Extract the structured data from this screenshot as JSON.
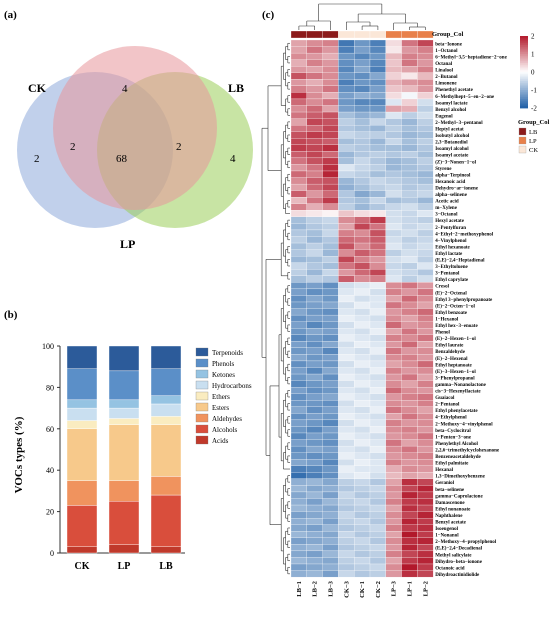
{
  "panel_labels": {
    "a": "(a)",
    "b": "(b)",
    "c": "(c)"
  },
  "colors": {
    "venn": {
      "CK": "#8eaadb",
      "LB": "#9acd5a",
      "LP": "#e8959a"
    },
    "stack": [
      "#c0392b",
      "#d94e3c",
      "#f0935e",
      "#f7c98b",
      "#faecc0",
      "#c9dff0",
      "#95c3e2",
      "#5b8fc8",
      "#2c5b9a"
    ],
    "heat": {
      "low": "#1f5fa6",
      "mid": "#ffffff",
      "high": "#b2182b"
    },
    "group": {
      "LB": "#8b1a1a",
      "LP": "#e8804a",
      "CK": "#fbe7d8"
    }
  },
  "chart_data": [
    {
      "type": "venn",
      "sets": [
        "CK",
        "LB",
        "LP"
      ],
      "regions": {
        "CK_only": "2",
        "LB_only": "4",
        "LP_only": "4",
        "CK_LP": "2",
        "LB_LP": "2",
        "CK_LB_LP": "68"
      }
    },
    {
      "type": "bar",
      "stacked": true,
      "categories": [
        "CK",
        "LP",
        "LB"
      ],
      "ylabel": "VOCs types (%)",
      "ylim": [
        0,
        100
      ],
      "yticks": [
        "0",
        "20",
        "40",
        "60",
        "80",
        "100"
      ],
      "legend_position": "right",
      "series": [
        {
          "name": "Acids",
          "values": [
            3,
            4,
            3
          ]
        },
        {
          "name": "Alcohols",
          "values": [
            20,
            21,
            25
          ]
        },
        {
          "name": "Aldehydes",
          "values": [
            12,
            10,
            9
          ]
        },
        {
          "name": "Esters",
          "values": [
            25,
            27,
            25
          ]
        },
        {
          "name": "Ethers",
          "values": [
            4,
            3,
            4
          ]
        },
        {
          "name": "Hydrocarbons",
          "values": [
            6,
            5,
            6
          ]
        },
        {
          "name": "Ketones",
          "values": [
            4,
            4,
            4
          ]
        },
        {
          "name": "Phenols",
          "values": [
            15,
            14,
            13
          ]
        },
        {
          "name": "Terpenoids",
          "values": [
            11,
            12,
            11
          ]
        }
      ]
    },
    {
      "type": "heatmap",
      "columns": [
        "LB−1",
        "LB−2",
        "LB−3",
        "CK−3",
        "CK−1",
        "CK−2",
        "LP−3",
        "LP−1",
        "LP−2"
      ],
      "column_groups": [
        "LB",
        "LB",
        "LB",
        "CK",
        "CK",
        "CK",
        "LP",
        "LP",
        "LP"
      ],
      "group_row_label": "Group_Col",
      "legend_title": "Group_Col",
      "legend_items": [
        "LB",
        "LP",
        "CK"
      ],
      "colorbar_ticks": [
        "2",
        "1",
        "0",
        "-1",
        "-2"
      ],
      "range": [
        -2,
        2
      ],
      "rows": [
        "beta−Ionone",
        "1−Octanol",
        "6−Methyl−3,5−heptadiene−2−one",
        "Octanal",
        "Linalool",
        "2−Butanol",
        "Limonene",
        "Phenethyl acetate",
        "6−Methylhept−5−en−2−one",
        "Isoamyl lactate",
        "Benzyl alcohol",
        "Eugenol",
        "2−Methyl−3−pentanol",
        "Heptyl acetat",
        "Isobutyl alcohol",
        "2,3−Butanediol",
        "Isoamyl alcohol",
        "Isoamyl acetate",
        "(Z)−3−Nonen−1−ol",
        "Styrene",
        "alpha−Terpineol",
        "Hexanoic acid",
        "Dehydro−ar−ionene",
        "alpha−selinene",
        "Acetic acid",
        "m−Xylene",
        "3−Octanol",
        "Hexyl acetate",
        "2−Pentylfuran",
        "4−Ethyl−2−methoxyphenol",
        "4−Vinylphenol",
        "Ethyl hexanoate",
        "Ethyl lactate",
        "(E,E)−2,4−Heptadienal",
        "3−Ethyltoluene",
        "3−Pentanol",
        "Ethyl caprylate",
        "Cresol",
        "(E)−2−Octenal",
        "Ethyl 3−phenylpropanoate",
        "(E)−2−Octen−1−ol",
        "Ethyl benzoate",
        "1−Hexanol",
        "Ethyl hex−3−enoate",
        "Phenol",
        "(E)−2−Hexen−1−ol",
        "Ethyl laurate",
        "Benzaldehyde",
        "(E)−2−Hexenal",
        "Ethyl heptanoate",
        "(E)−3−Hexen−1−ol",
        "3−Phenylpropanol",
        "gamma−Nonanolactone",
        "cis−3−Hexenyllactate",
        "Guaiacol",
        "2−Pentanol",
        "Ethyl phenylacetate",
        "4−Ethylphenol",
        "2−Methoxy−4−vinylphenol",
        "beta−Cyclocitral",
        "1−Penten−3−one",
        "Phenylethyl Alcohol",
        "2,2,6−trimethylcyclohexanone",
        "Benzeneacetaldehyde",
        "Ethyl palmitate",
        "Hexanal",
        "1,3−Dimethoxybenzene",
        "Geraniol",
        "beta−selinene",
        "gamma−Caprolactone",
        "Damascenone",
        "Ethyl nonanoate",
        "Naphthalene",
        "Benzyl acetate",
        "Isoeugenol",
        "1−Nonanol",
        "2−Methoxy−4−propylphenol",
        "(E,E)−2,4−Decadienal",
        "Methyl salicylate",
        "Dihydro−beta−ionone",
        "Octanoic acid",
        "Dihydroactinidiolide"
      ],
      "values": [
        [
          0.8,
          1.0,
          1.1,
          -1.7,
          -1.3,
          -1.6,
          0.3,
          1.2,
          1.6
        ],
        [
          0.8,
          1.2,
          0.9,
          -1.6,
          -1.2,
          -1.5,
          0.2,
          0.9,
          1.1
        ],
        [
          1.0,
          0.9,
          0.7,
          -1.3,
          -1.5,
          -1.3,
          0.6,
          1.1,
          1.0
        ],
        [
          0.7,
          1.1,
          0.9,
          -1.4,
          -1.2,
          -1.5,
          0.5,
          1.2,
          0.9
        ],
        [
          0.9,
          0.8,
          1.0,
          -1.5,
          -1.1,
          -1.6,
          0.6,
          0.8,
          1.1
        ],
        [
          1.5,
          1.2,
          1.0,
          -1.3,
          -1.4,
          -1.1,
          0.4,
          0.2,
          0.6
        ],
        [
          0.9,
          0.7,
          1.0,
          -1.6,
          -1.3,
          -1.4,
          0.7,
          0.9,
          1.0
        ],
        [
          1.1,
          0.9,
          1.2,
          -1.4,
          -1.5,
          -1.2,
          0.5,
          0.6,
          0.9
        ],
        [
          1.8,
          1.0,
          0.7,
          -1.2,
          -1.0,
          -1.1,
          0.3,
          -0.1,
          0.4
        ],
        [
          1.3,
          1.0,
          1.2,
          -1.3,
          -1.5,
          -1.5,
          -0.3,
          0.4,
          -0.4
        ],
        [
          1.0,
          1.3,
          0.8,
          -1.2,
          -1.3,
          -1.3,
          0.8,
          0.7,
          -0.6
        ],
        [
          1.2,
          1.4,
          1.5,
          -0.8,
          -1.0,
          -0.9,
          -0.3,
          -0.6,
          -0.4
        ],
        [
          0.8,
          1.6,
          1.5,
          -0.6,
          -0.8,
          -0.5,
          -0.7,
          -0.9,
          -0.6
        ],
        [
          1.2,
          1.3,
          1.6,
          -0.7,
          -0.8,
          -0.9,
          -0.6,
          -0.8,
          -0.7
        ],
        [
          1.5,
          1.7,
          1.6,
          -0.5,
          -0.6,
          -0.6,
          -0.7,
          -0.9,
          -0.8
        ],
        [
          1.6,
          1.5,
          1.4,
          -0.8,
          -0.7,
          -0.9,
          -0.5,
          -0.8,
          -0.6
        ],
        [
          1.7,
          1.6,
          1.8,
          -0.6,
          -0.7,
          -0.8,
          -0.8,
          -0.9,
          -0.7
        ],
        [
          1.4,
          1.6,
          1.3,
          -0.9,
          -0.7,
          -0.6,
          -0.7,
          -0.6,
          -0.8
        ],
        [
          1.2,
          1.5,
          1.7,
          -0.8,
          -0.5,
          -0.7,
          -0.9,
          -0.8,
          -0.6
        ],
        [
          0.9,
          1.2,
          1.8,
          -0.3,
          -0.5,
          -0.6,
          -0.9,
          -0.8,
          -0.7
        ],
        [
          1.3,
          1.1,
          1.9,
          -0.5,
          -0.6,
          -0.8,
          -0.7,
          -0.8,
          -0.9
        ],
        [
          1.0,
          1.4,
          1.5,
          -0.9,
          -0.7,
          -0.5,
          -0.6,
          -0.7,
          -0.8
        ],
        [
          0.8,
          1.3,
          1.6,
          -1.0,
          -0.8,
          -0.6,
          -0.5,
          -0.7,
          -0.6
        ],
        [
          1.4,
          0.9,
          1.3,
          -0.7,
          -1.1,
          -0.9,
          -0.4,
          -0.6,
          -0.5
        ],
        [
          0.6,
          1.2,
          1.7,
          -0.7,
          -0.8,
          -0.5,
          -0.8,
          -0.7,
          -0.9
        ],
        [
          1.1,
          0.7,
          1.0,
          -0.6,
          -0.9,
          -0.7,
          -0.5,
          -0.4,
          -0.6
        ],
        [
          0.3,
          0.2,
          0.1,
          0.5,
          0.3,
          0.2,
          -0.4,
          -0.5,
          -0.3
        ],
        [
          -0.8,
          -0.6,
          -0.5,
          1.0,
          1.3,
          1.7,
          -0.4,
          -0.5,
          -0.6
        ],
        [
          -0.9,
          -0.7,
          -0.6,
          0.8,
          1.6,
          1.2,
          -0.3,
          -0.5,
          -0.4
        ],
        [
          -0.7,
          -0.8,
          -0.5,
          1.1,
          1.0,
          1.5,
          -0.5,
          -0.4,
          -0.6
        ],
        [
          -0.6,
          -0.9,
          -0.7,
          1.3,
          1.2,
          1.4,
          -0.4,
          -0.6,
          -0.5
        ],
        [
          -0.8,
          -0.6,
          -0.8,
          1.5,
          1.0,
          1.3,
          -0.3,
          -0.5,
          -0.4
        ],
        [
          -0.7,
          -0.5,
          -0.9,
          1.0,
          1.4,
          1.2,
          -0.6,
          -0.4,
          -0.5
        ],
        [
          -0.9,
          -0.8,
          -0.6,
          1.6,
          1.1,
          0.9,
          -0.4,
          -0.3,
          -0.6
        ],
        [
          -0.5,
          -0.7,
          -0.8,
          1.2,
          1.5,
          1.0,
          -0.5,
          -0.6,
          -0.3
        ],
        [
          -0.6,
          -0.9,
          -0.5,
          0.9,
          1.3,
          1.6,
          -0.4,
          -0.5,
          -0.7
        ],
        [
          -0.8,
          -0.6,
          -0.7,
          1.4,
          1.0,
          1.1,
          -0.3,
          -0.6,
          -0.4
        ],
        [
          -1.3,
          -1.2,
          -1.4,
          -0.4,
          -0.3,
          -0.2,
          1.0,
          1.2,
          0.9
        ],
        [
          -1.2,
          -1.4,
          -1.3,
          -0.3,
          -0.2,
          -0.4,
          1.1,
          0.9,
          1.2
        ],
        [
          -1.4,
          -1.1,
          -1.3,
          -0.2,
          -0.4,
          -0.3,
          0.8,
          1.3,
          1.0
        ],
        [
          -1.3,
          -1.2,
          -1.1,
          -0.4,
          -0.2,
          -0.3,
          1.2,
          1.0,
          0.8
        ],
        [
          -1.1,
          -1.3,
          -1.4,
          -0.3,
          -0.4,
          -0.2,
          0.9,
          1.1,
          1.3
        ],
        [
          -1.4,
          -1.2,
          -1.2,
          -0.2,
          -0.3,
          -0.4,
          1.0,
          0.8,
          1.1
        ],
        [
          -1.2,
          -1.5,
          -1.3,
          -0.4,
          -0.2,
          -0.3,
          1.3,
          0.9,
          1.0
        ],
        [
          -1.3,
          -1.1,
          -1.2,
          -0.3,
          -0.4,
          -0.2,
          0.8,
          1.2,
          0.9
        ],
        [
          -1.5,
          -1.3,
          -1.4,
          -0.2,
          -0.3,
          -0.4,
          1.1,
          1.0,
          1.2
        ],
        [
          -1.2,
          -1.4,
          -1.1,
          -0.4,
          -0.2,
          -0.3,
          0.9,
          1.3,
          0.8
        ],
        [
          -1.3,
          -1.2,
          -1.5,
          -0.3,
          -0.4,
          -0.2,
          1.2,
          0.9,
          1.0
        ],
        [
          -1.1,
          -1.3,
          -1.2,
          -0.2,
          -0.3,
          -0.4,
          1.0,
          1.1,
          0.9
        ],
        [
          -1.4,
          -1.2,
          -1.3,
          -0.4,
          -0.2,
          -0.3,
          0.8,
          1.0,
          1.3
        ],
        [
          -1.2,
          -1.5,
          -1.1,
          -0.3,
          -0.4,
          -0.2,
          1.1,
          0.9,
          1.0
        ],
        [
          -1.3,
          -1.1,
          -1.4,
          -0.2,
          -0.3,
          -0.4,
          0.9,
          1.2,
          0.8
        ],
        [
          -1.5,
          -1.3,
          -1.2,
          -0.4,
          -0.2,
          -0.3,
          1.0,
          0.8,
          1.1
        ],
        [
          -1.2,
          -1.4,
          -1.3,
          -0.3,
          -0.4,
          -0.2,
          1.3,
          1.0,
          0.9
        ],
        [
          -1.4,
          -1.2,
          -1.1,
          -0.2,
          -0.3,
          -0.4,
          0.9,
          1.1,
          1.2
        ],
        [
          -1.3,
          -1.3,
          -1.4,
          -0.4,
          -0.2,
          -0.3,
          1.0,
          0.9,
          1.1
        ],
        [
          -1.1,
          -1.4,
          -1.2,
          -0.3,
          -0.4,
          -0.2,
          1.2,
          1.0,
          0.8
        ],
        [
          -1.4,
          -1.2,
          -1.3,
          -0.2,
          -0.3,
          -0.4,
          0.8,
          1.2,
          1.0
        ],
        [
          -1.2,
          -1.3,
          -1.5,
          -0.4,
          -0.2,
          -0.3,
          1.1,
          0.9,
          1.0
        ],
        [
          -1.3,
          -1.5,
          -1.2,
          -0.3,
          -0.4,
          -0.2,
          1.0,
          1.1,
          0.9
        ],
        [
          -1.5,
          -1.2,
          -1.3,
          -0.2,
          -0.3,
          -0.4,
          0.9,
          1.0,
          1.2
        ],
        [
          -1.2,
          -1.3,
          -1.4,
          -0.4,
          -0.2,
          -0.3,
          1.2,
          0.8,
          1.0
        ],
        [
          -1.4,
          -1.1,
          -1.2,
          -0.3,
          -0.4,
          -0.2,
          1.0,
          1.2,
          0.9
        ],
        [
          -1.3,
          -1.4,
          -1.3,
          -0.2,
          -0.3,
          -0.4,
          0.9,
          1.0,
          1.1
        ],
        [
          -1.1,
          -1.2,
          -1.5,
          -0.4,
          -0.2,
          -0.3,
          1.1,
          0.9,
          1.0
        ],
        [
          -1.6,
          -1.5,
          -1.3,
          -0.2,
          -0.3,
          -0.3,
          0.7,
          1.0,
          0.9
        ],
        [
          -1.8,
          -1.6,
          -1.4,
          -0.3,
          -0.2,
          -0.4,
          0.6,
          0.8,
          0.7
        ],
        [
          -1.0,
          -0.9,
          -1.1,
          -0.6,
          -0.5,
          -0.7,
          0.8,
          1.8,
          1.6
        ],
        [
          -0.9,
          -1.1,
          -1.0,
          -0.7,
          -0.6,
          -0.5,
          1.0,
          1.6,
          1.9
        ],
        [
          -1.1,
          -0.9,
          -1.2,
          -0.5,
          -0.7,
          -0.6,
          0.9,
          1.9,
          1.7
        ],
        [
          -1.0,
          -1.2,
          -0.9,
          -0.6,
          -0.5,
          -0.7,
          1.1,
          1.7,
          1.8
        ],
        [
          -0.9,
          -1.0,
          -1.1,
          -0.7,
          -0.6,
          -0.5,
          0.8,
          1.8,
          1.6
        ],
        [
          -1.2,
          -1.1,
          -1.0,
          -0.5,
          -0.7,
          -0.6,
          1.0,
          1.6,
          1.9
        ],
        [
          -1.0,
          -0.9,
          -1.2,
          -0.6,
          -0.5,
          -0.7,
          0.9,
          1.9,
          1.7
        ],
        [
          -1.1,
          -1.2,
          -0.9,
          -0.7,
          -0.6,
          -0.5,
          1.1,
          1.7,
          1.8
        ],
        [
          -0.9,
          -1.0,
          -1.1,
          -0.5,
          -0.7,
          -0.6,
          0.8,
          2.0,
          1.7
        ],
        [
          -1.2,
          -1.1,
          -1.0,
          -0.6,
          -0.5,
          -0.7,
          1.0,
          1.8,
          1.9
        ],
        [
          -1.0,
          -0.9,
          -1.2,
          -0.7,
          -0.6,
          -0.5,
          0.9,
          1.9,
          1.6
        ],
        [
          -1.1,
          -1.2,
          -0.9,
          -0.5,
          -0.7,
          -0.6,
          1.1,
          1.6,
          1.8
        ],
        [
          -0.9,
          -1.0,
          -1.1,
          -0.6,
          -0.5,
          -0.7,
          0.8,
          1.7,
          1.9
        ],
        [
          -1.2,
          -1.1,
          -1.0,
          -0.7,
          -0.6,
          -0.5,
          1.0,
          2.0,
          1.7
        ],
        [
          -1.0,
          -0.9,
          -1.2,
          -0.5,
          -0.7,
          -0.6,
          0.9,
          1.8,
          1.6
        ]
      ]
    }
  ]
}
